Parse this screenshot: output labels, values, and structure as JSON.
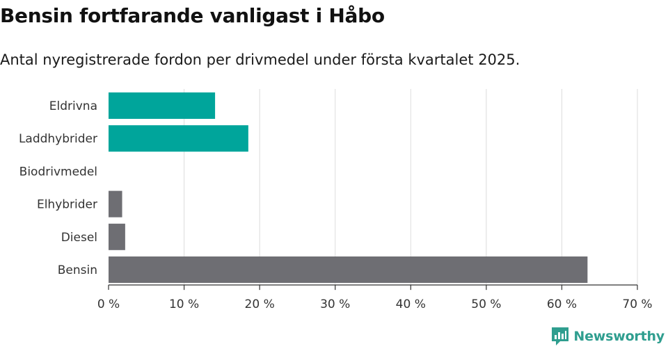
{
  "header": {
    "title": "Bensin fortfarande vanligast i Håbo",
    "subtitle": "Antal nyregistrerade fordon per drivmedel under första kvartalet 2025."
  },
  "brand": {
    "name": "Newsworthy"
  },
  "colors": {
    "teal": "#00a59b",
    "gray": "#6e6e73",
    "grid": "#dcdcdc",
    "brand": "#2f9e8f"
  },
  "chart_data": {
    "type": "bar",
    "orientation": "horizontal",
    "categories": [
      "Eldrivna",
      "Laddhybrider",
      "Biodrivmedel",
      "Elhybrider",
      "Diesel",
      "Bensin"
    ],
    "values": [
      14.1,
      18.5,
      0,
      1.8,
      2.2,
      63.4
    ],
    "bar_colors": [
      "#00a59b",
      "#00a59b",
      "#6e6e73",
      "#6e6e73",
      "#6e6e73",
      "#6e6e73"
    ],
    "xlim": [
      0,
      70
    ],
    "xticks": [
      0,
      10,
      20,
      30,
      40,
      50,
      60,
      70
    ],
    "xtick_labels": [
      "0 %",
      "10 %",
      "20 %",
      "30 %",
      "40 %",
      "50 %",
      "60 %",
      "70 %"
    ],
    "grid": true,
    "title": "Bensin fortfarande vanligast i Håbo",
    "subtitle": "Antal nyregistrerade fordon per drivmedel under första kvartalet 2025."
  }
}
